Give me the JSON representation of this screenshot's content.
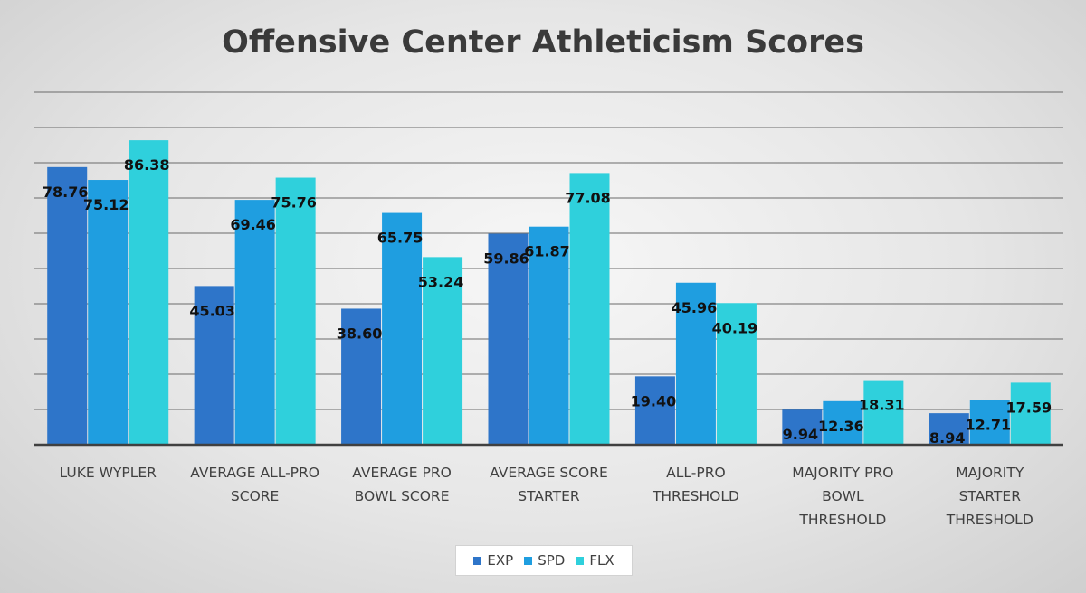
{
  "chart_data": {
    "type": "bar",
    "title": "Offensive Center Athleticism Scores",
    "categories": [
      [
        "LUKE WYPLER"
      ],
      [
        "AVERAGE ALL-PRO",
        "SCORE"
      ],
      [
        "AVERAGE PRO",
        "BOWL SCORE"
      ],
      [
        "AVERAGE SCORE",
        "STARTER"
      ],
      [
        "ALL-PRO",
        "THRESHOLD"
      ],
      [
        "MAJORITY PRO",
        "BOWL",
        "THRESHOLD"
      ],
      [
        "MAJORITY",
        "STARTER",
        "THRESHOLD"
      ]
    ],
    "series": [
      {
        "name": "EXP",
        "color": "#2e75c9",
        "values": [
          78.76,
          45.03,
          38.6,
          59.86,
          19.4,
          9.94,
          8.94
        ],
        "labels": [
          "78.76",
          "45.03",
          "38.60",
          "59.86",
          "19.40",
          "9.94",
          "8.94"
        ]
      },
      {
        "name": "SPD",
        "color": "#1f9ee0",
        "values": [
          75.12,
          69.46,
          65.75,
          61.87,
          45.96,
          12.36,
          12.71
        ],
        "labels": [
          "75.12",
          "69.46",
          "65.75",
          "61.87",
          "45.96",
          "12.36",
          "12.71"
        ]
      },
      {
        "name": "FLX",
        "color": "#2fd0dc",
        "values": [
          86.38,
          75.76,
          53.24,
          77.08,
          40.19,
          18.31,
          17.59
        ],
        "labels": [
          "86.38",
          "75.76",
          "53.24",
          "77.08",
          "40.19",
          "18.31",
          "17.59"
        ]
      }
    ],
    "ylim": [
      0,
      100
    ],
    "gridlines": true,
    "legend_position": "bottom"
  }
}
